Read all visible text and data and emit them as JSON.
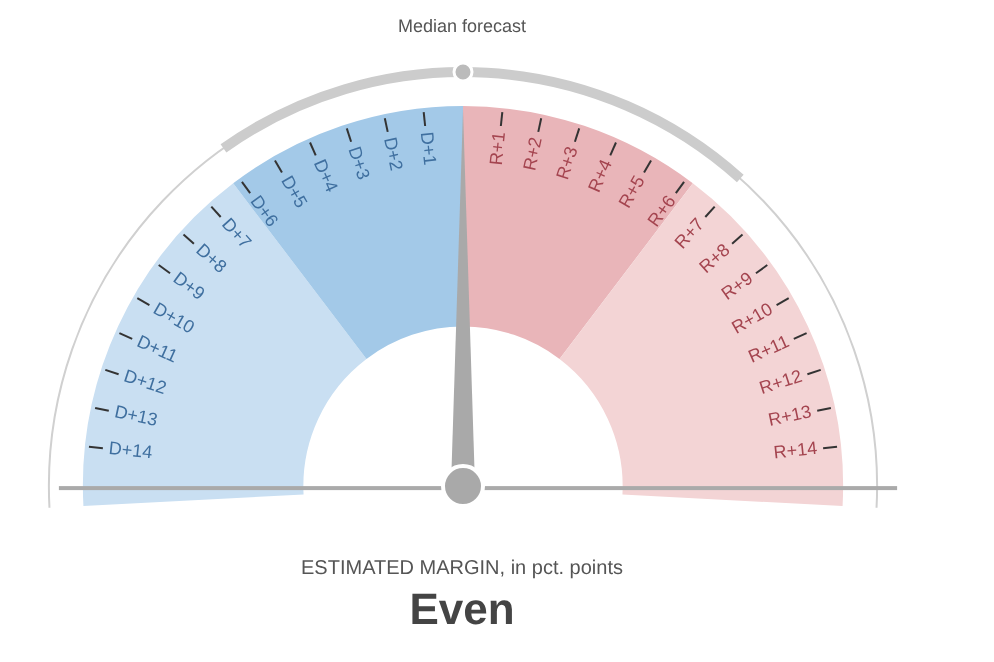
{
  "chart_data": {
    "type": "donut",
    "categories": [
      null,
      null,
      null,
      null
    ],
    "values": [
      30,
      20,
      20,
      30
    ],
    "colors": [
      "#c9dff2",
      "#a3c9e8",
      "#e9b5b9",
      "#f3d4d5"
    ],
    "title": "Median forecast",
    "subtitle": "Even",
    "xlabel": "ESTIMATED MARGIN, in pct. points",
    "annotations": [
      "D+14",
      "D+13",
      "D+12",
      "D+11",
      "D+10",
      "D+9",
      "D+8",
      "D+7",
      "D+6",
      "D+5",
      "D+4",
      "D+3",
      "D+2",
      "D+1",
      "R+1",
      "R+2",
      "R+3",
      "R+4",
      "R+5",
      "R+6",
      "R+7",
      "R+8",
      "R+9",
      "R+10",
      "R+11",
      "R+12",
      "R+13",
      "R+14"
    ],
    "legend": false
  }
}
